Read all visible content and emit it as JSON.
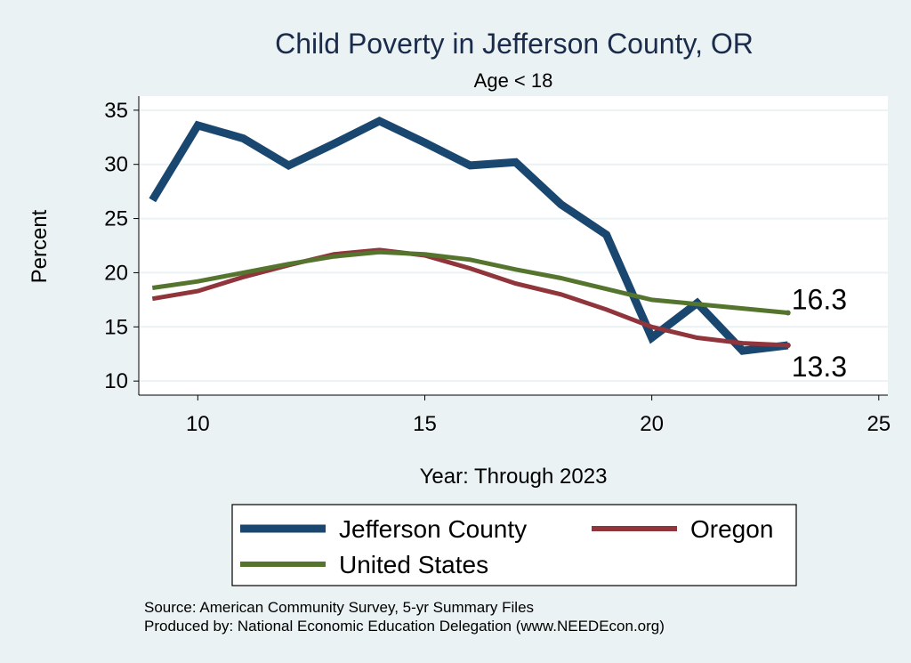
{
  "chart_data": {
    "type": "line",
    "title": "Child Poverty in Jefferson County, OR",
    "subtitle": "Age < 18",
    "xlabel": "Year: Through 2023",
    "ylabel": "Percent",
    "xlim": [
      8.7,
      25.2
    ],
    "ylim": [
      8.7,
      36.3
    ],
    "xticks": [
      10,
      15,
      20,
      25
    ],
    "yticks": [
      10,
      15,
      20,
      25,
      30,
      35
    ],
    "grid": true,
    "legend_position": "bottom",
    "series": [
      {
        "name": "Jefferson County",
        "color": "#1a476f",
        "x": [
          9,
          10,
          11,
          12,
          13,
          14,
          15,
          16,
          17,
          18,
          19,
          20,
          21,
          22,
          23
        ],
        "values": [
          26.7,
          33.6,
          32.4,
          29.9,
          31.9,
          34.0,
          32.0,
          29.9,
          30.2,
          26.3,
          23.5,
          14.0,
          17.2,
          12.8,
          13.3
        ]
      },
      {
        "name": "Oregon",
        "color": "#90353b",
        "x": [
          9,
          10,
          11,
          12,
          13,
          14,
          15,
          16,
          17,
          18,
          19,
          20,
          21,
          22,
          23
        ],
        "values": [
          17.6,
          18.3,
          19.6,
          20.7,
          21.7,
          22.1,
          21.6,
          20.4,
          19.0,
          18.0,
          16.6,
          15.0,
          14.0,
          13.5,
          13.3
        ]
      },
      {
        "name": "United States",
        "color": "#55752f",
        "x": [
          9,
          10,
          11,
          12,
          13,
          14,
          15,
          16,
          17,
          18,
          19,
          20,
          21,
          22,
          23
        ],
        "values": [
          18.6,
          19.2,
          20.0,
          20.8,
          21.5,
          21.9,
          21.7,
          21.2,
          20.3,
          19.5,
          18.5,
          17.5,
          17.1,
          16.7,
          16.3
        ]
      }
    ],
    "end_labels": [
      {
        "text": "16.3",
        "series": "United States",
        "value": 16.3
      },
      {
        "text": "13.3",
        "series": "Jefferson County",
        "value": 13.3
      }
    ]
  },
  "footer": {
    "source": "Source: American Community Survey, 5-yr Summary Files",
    "produced": "Produced by: National Economic Education Delegation (www.NEEDEcon.org)"
  }
}
